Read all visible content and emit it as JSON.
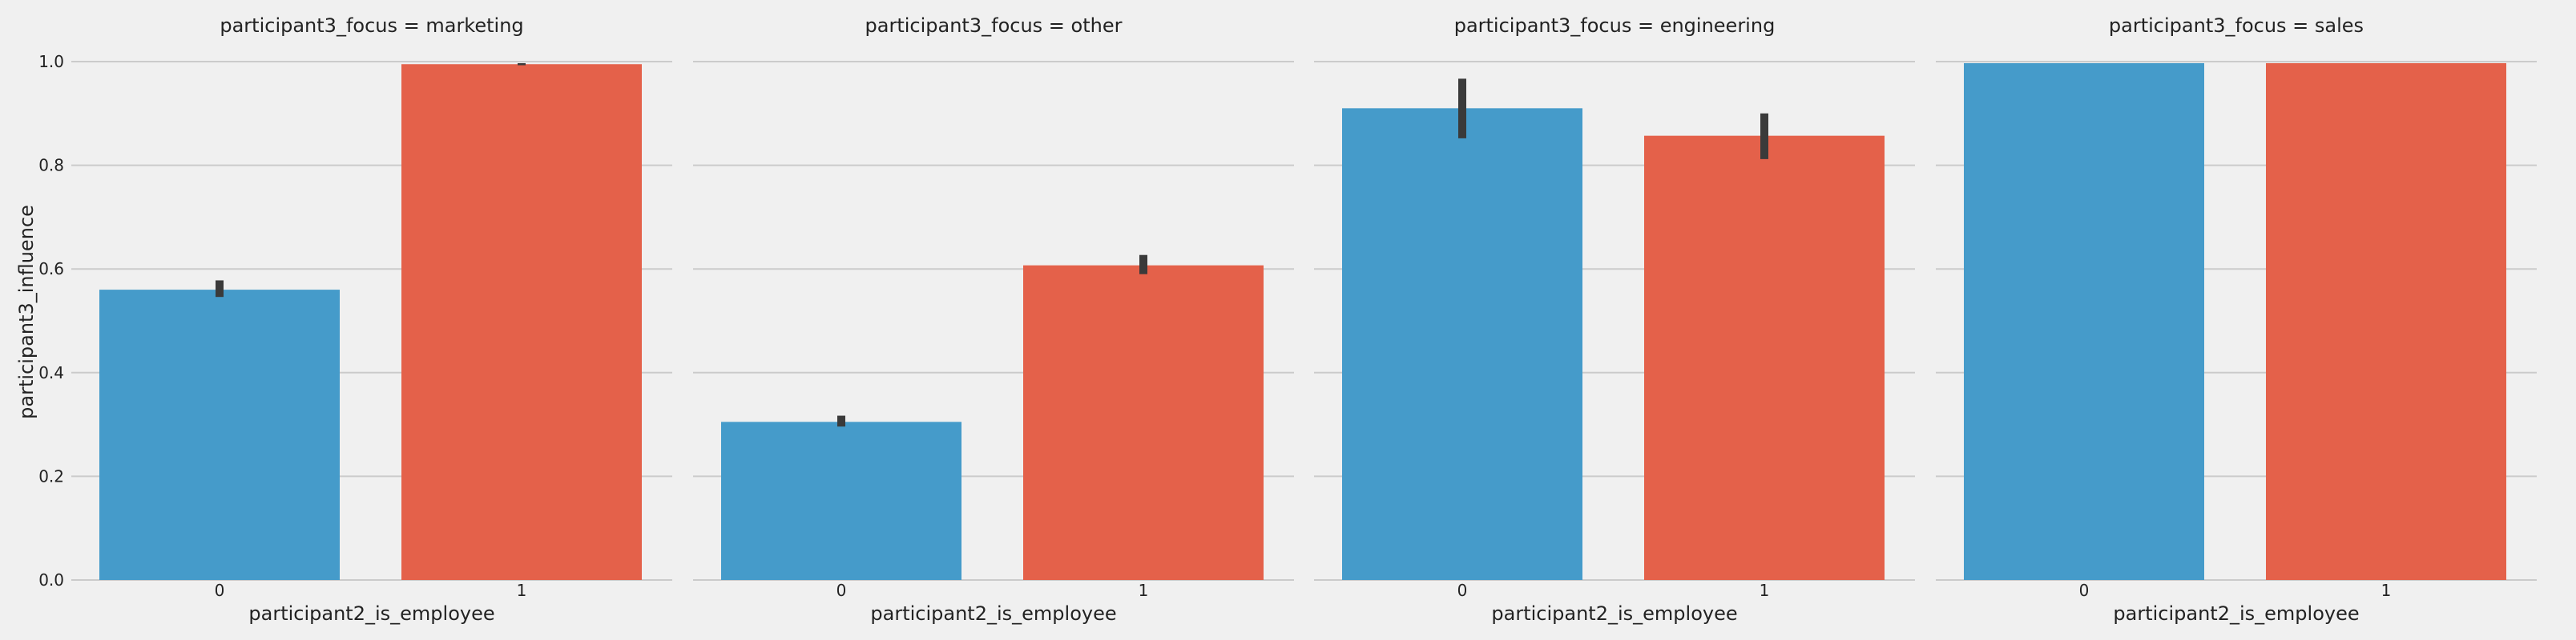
{
  "chart_data": {
    "type": "bar",
    "xlabel": "participant2_is_employee",
    "ylabel": "participant3_influence",
    "ylim": [
      0,
      1.0
    ],
    "yticks": [
      0.0,
      0.2,
      0.4,
      0.6,
      0.8,
      1.0
    ],
    "ytick_labels": [
      "0.0",
      "0.2",
      "0.4",
      "0.6",
      "0.8",
      "1.0"
    ],
    "categories": [
      "0",
      "1"
    ],
    "grid": true,
    "colors": [
      "#459bca",
      "#e4614a"
    ],
    "facets": [
      {
        "title": "participant3_focus = marketing",
        "values": [
          0.56,
          0.995
        ],
        "error_low": [
          0.546,
          0.993
        ],
        "error_high": [
          0.578,
          0.997
        ]
      },
      {
        "title": "participant3_focus = other",
        "values": [
          0.305,
          0.607
        ],
        "error_low": [
          0.296,
          0.59
        ],
        "error_high": [
          0.317,
          0.627
        ]
      },
      {
        "title": "participant3_focus = engineering",
        "values": [
          0.91,
          0.857
        ],
        "error_low": [
          0.852,
          0.812
        ],
        "error_high": [
          0.967,
          0.9
        ]
      },
      {
        "title": "participant3_focus = sales",
        "values": [
          0.997,
          0.997
        ],
        "error_low": [
          0.997,
          0.997
        ],
        "error_high": [
          0.997,
          0.997
        ]
      }
    ]
  }
}
